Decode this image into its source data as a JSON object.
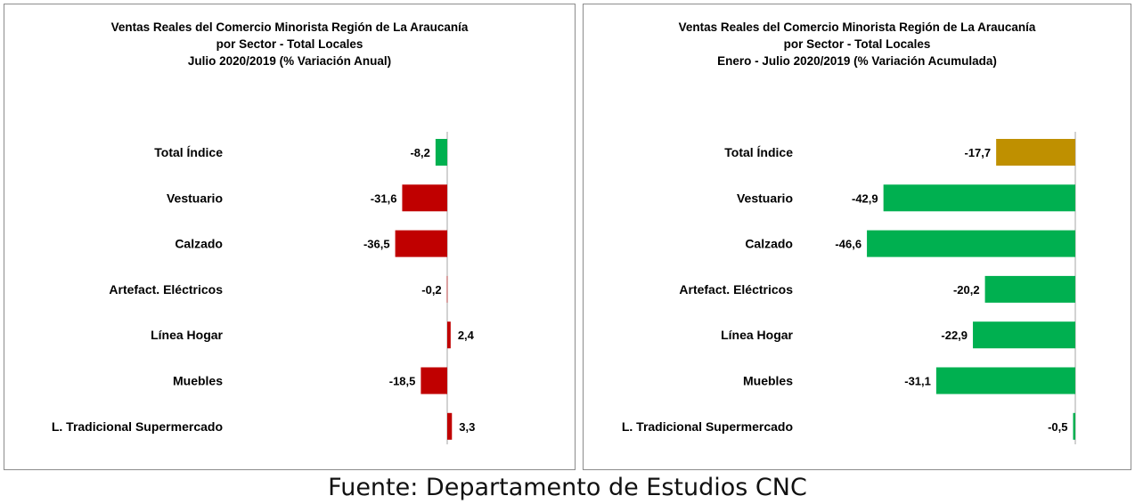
{
  "footer": "Fuente: Departamento de Estudios CNC",
  "chart_data": [
    {
      "type": "bar",
      "orientation": "horizontal",
      "title": [
        "Ventas Reales del Comercio Minorista  Región de La Araucanía",
        "por Sector  - Total Locales",
        "Julio 2020/2019 (% Variación Anual)"
      ],
      "categories": [
        "Total Índice",
        "Vestuario",
        "Calzado",
        "Artefact. Eléctricos",
        "Línea Hogar",
        "Muebles",
        "L. Tradicional Supermercado"
      ],
      "values": [
        -8.2,
        -31.6,
        -36.5,
        -0.2,
        2.4,
        -18.5,
        3.3
      ],
      "labels": [
        "-8,2",
        "-31,6",
        "-36,5",
        "-0,2",
        "2,4",
        "-18,5",
        "3,3"
      ],
      "bar_colors": [
        "#00b050",
        "#c00000",
        "#c00000",
        "#c00000",
        "#c00000",
        "#c00000",
        "#c00000"
      ],
      "grid": false
    },
    {
      "type": "bar",
      "orientation": "horizontal",
      "title": [
        "Ventas Reales del Comercio Minorista Región de La Araucanía",
        "por Sector - Total Locales",
        "Enero - Julio 2020/2019 (% Variación Acumulada)"
      ],
      "categories": [
        "Total Índice",
        "Vestuario",
        "Calzado",
        "Artefact. Eléctricos",
        "Línea Hogar",
        "Muebles",
        "L. Tradicional Supermercado"
      ],
      "values": [
        -17.7,
        -42.9,
        -46.6,
        -20.2,
        -22.9,
        -31.1,
        -0.5
      ],
      "labels": [
        "-17,7",
        "-42,9",
        "-46,6",
        "-20,2",
        "-22,9",
        "-31,1",
        "-0,5"
      ],
      "bar_colors": [
        "#bf9000",
        "#00b050",
        "#00b050",
        "#00b050",
        "#00b050",
        "#00b050",
        "#00b050"
      ],
      "grid": false
    }
  ]
}
